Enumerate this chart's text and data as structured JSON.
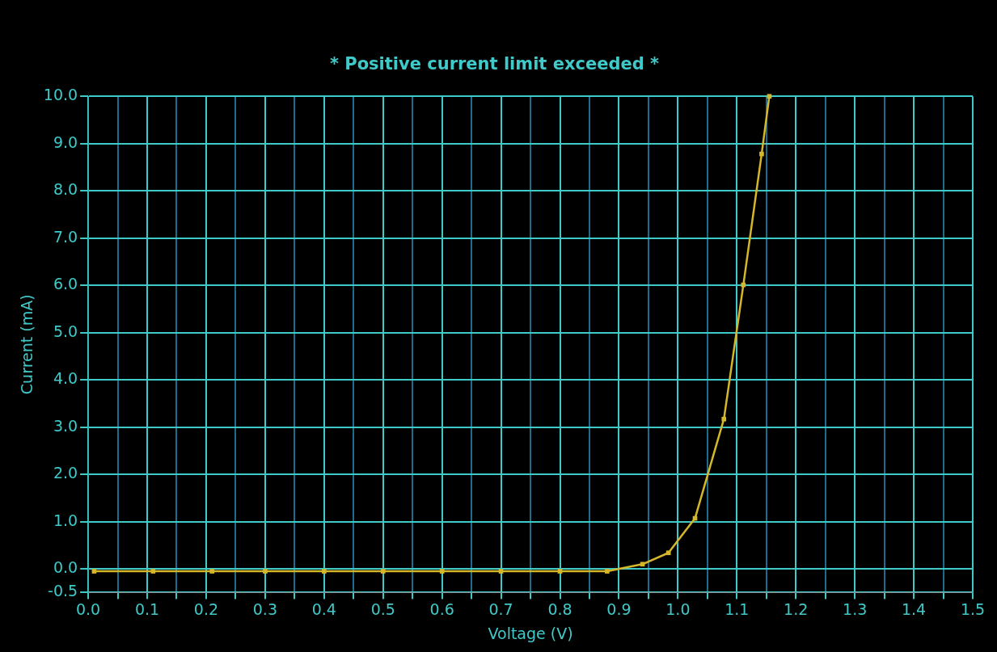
{
  "chart_data": {
    "type": "line",
    "title": "* Positive current limit exceeded *",
    "xlabel": "Voltage (V)",
    "ylabel": "Current (mA)",
    "x": [
      0.01,
      0.11,
      0.21,
      0.3,
      0.4,
      0.5,
      0.6,
      0.7,
      0.8,
      0.88,
      0.94,
      0.984,
      1.029,
      1.078,
      1.111,
      1.142,
      1.155
    ],
    "series": [
      {
        "color": "#d4b72a",
        "values": [
          -0.05,
          -0.05,
          -0.05,
          -0.05,
          -0.05,
          -0.05,
          -0.05,
          -0.05,
          -0.05,
          -0.05,
          0.1,
          0.34,
          1.07,
          3.17,
          6.01,
          8.78,
          10.0
        ]
      }
    ],
    "xlim": [
      0,
      1.5
    ],
    "xticks": [
      {
        "value": 0,
        "label": "0.0"
      },
      {
        "value": 0.05,
        "label": null
      },
      {
        "value": 0.1,
        "label": "0.1"
      },
      {
        "value": 0.15,
        "label": null
      },
      {
        "value": 0.2,
        "label": "0.2"
      },
      {
        "value": 0.25,
        "label": null
      },
      {
        "value": 0.3,
        "label": "0.3"
      },
      {
        "value": 0.35,
        "label": null
      },
      {
        "value": 0.4,
        "label": "0.4"
      },
      {
        "value": 0.45,
        "label": null
      },
      {
        "value": 0.5,
        "label": "0.5"
      },
      {
        "value": 0.55,
        "label": null
      },
      {
        "value": 0.6,
        "label": "0.6"
      },
      {
        "value": 0.65,
        "label": null
      },
      {
        "value": 0.7,
        "label": "0.7"
      },
      {
        "value": 0.75,
        "label": null
      },
      {
        "value": 0.8,
        "label": "0.8"
      },
      {
        "value": 0.85,
        "label": null
      },
      {
        "value": 0.9,
        "label": "0.9"
      },
      {
        "value": 0.95,
        "label": null
      },
      {
        "value": 1.0,
        "label": "1.0"
      },
      {
        "value": 1.05,
        "label": null
      },
      {
        "value": 1.1,
        "label": "1.1"
      },
      {
        "value": 1.15,
        "label": null
      },
      {
        "value": 1.2,
        "label": "1.2"
      },
      {
        "value": 1.25,
        "label": null
      },
      {
        "value": 1.3,
        "label": "1.3"
      },
      {
        "value": 1.35,
        "label": null
      },
      {
        "value": 1.4,
        "label": "1.4"
      },
      {
        "value": 1.45,
        "label": null
      },
      {
        "value": 1.5,
        "label": "1.5"
      }
    ],
    "ylim": [
      -0.5,
      10
    ],
    "yticks": [
      {
        "value": -0.5,
        "label": "-0.5"
      },
      {
        "value": 0,
        "label": "0.0"
      },
      {
        "value": 1,
        "label": "1.0"
      },
      {
        "value": 2,
        "label": "2.0"
      },
      {
        "value": 3,
        "label": "3.0"
      },
      {
        "value": 4,
        "label": "4.0"
      },
      {
        "value": 5,
        "label": "5.0"
      },
      {
        "value": 6,
        "label": "6.0"
      },
      {
        "value": 7,
        "label": "7.0"
      },
      {
        "value": 8,
        "label": "8.0"
      },
      {
        "value": 9,
        "label": "9.0"
      },
      {
        "value": 10,
        "label": "10.0"
      }
    ],
    "grid": true,
    "marker": "square",
    "line_style": "solid",
    "legend": false
  }
}
